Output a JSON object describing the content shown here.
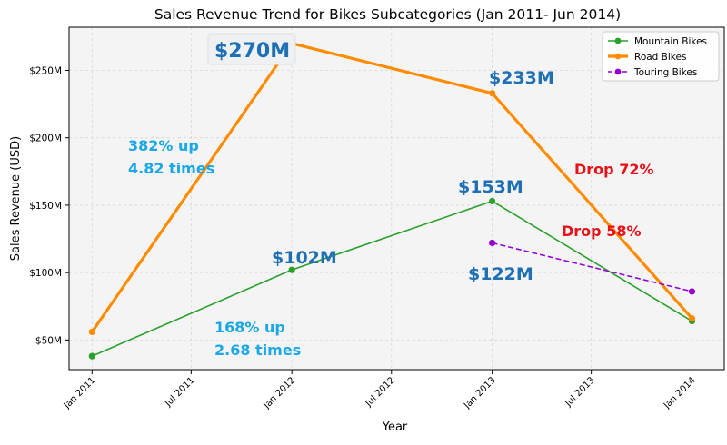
{
  "chart_data": {
    "type": "line",
    "title": "Sales Revenue Trend for Bikes Subcategories (Jan 2011- Jun 2014)",
    "xlabel": "Year",
    "ylabel": "Sales Revenue (USD)",
    "x_ticks": [
      "Jan 2011",
      "Jul 2011",
      "Jan 2012",
      "Jul 2012",
      "Jan 2013",
      "Jul 2013",
      "Jan 2014"
    ],
    "y_ticks": [
      {
        "value": 50,
        "label": "$50M"
      },
      {
        "value": 100,
        "label": "$100M"
      },
      {
        "value": 150,
        "label": "$150M"
      },
      {
        "value": 200,
        "label": "$200M"
      },
      {
        "value": 250,
        "label": "$250M"
      }
    ],
    "x_range": [
      "2010-11-20",
      "2014-03-01"
    ],
    "ylim": [
      28,
      282
    ],
    "grid": true,
    "legend_position": "top-right",
    "series": [
      {
        "name": "Mountain Bikes",
        "color": "#2ca02c",
        "style": "solid",
        "x": [
          "2011-01-01",
          "2012-01-01",
          "2013-01-01",
          "2014-01-01"
        ],
        "values": [
          38,
          102,
          153,
          64
        ]
      },
      {
        "name": "Road Bikes",
        "color": "#ff8c00",
        "style": "solid-thick",
        "x": [
          "2011-01-01",
          "2012-01-01",
          "2013-01-01",
          "2014-01-01"
        ],
        "values": [
          56,
          270,
          233,
          66
        ]
      },
      {
        "name": "Touring Bikes",
        "color": "#9400d3",
        "style": "dashed",
        "x": [
          "2013-01-01",
          "2014-01-01"
        ],
        "values": [
          122,
          86
        ]
      }
    ],
    "annotations": [
      {
        "text": "$270M",
        "color": "#1f6fb4",
        "boxed": true
      },
      {
        "text": "$233M",
        "color": "#1f6fb4"
      },
      {
        "text": "$153M",
        "color": "#1f6fb4"
      },
      {
        "text": "$102M",
        "color": "#1f6fb4"
      },
      {
        "text": "$122M",
        "color": "#1f6fb4"
      },
      {
        "text": "382% up",
        "color": "#1aa7e6"
      },
      {
        "text": "4.82 times",
        "color": "#1aa7e6"
      },
      {
        "text": "168% up",
        "color": "#1aa7e6"
      },
      {
        "text": "2.68 times",
        "color": "#1aa7e6"
      },
      {
        "text": "Drop 72%",
        "color": "#e8111a"
      },
      {
        "text": "Drop 58%",
        "color": "#e8111a"
      }
    ],
    "colors": {
      "plot_background": "#f4f4f4",
      "grid": "#d6d6d6",
      "axis": "#000000"
    }
  }
}
